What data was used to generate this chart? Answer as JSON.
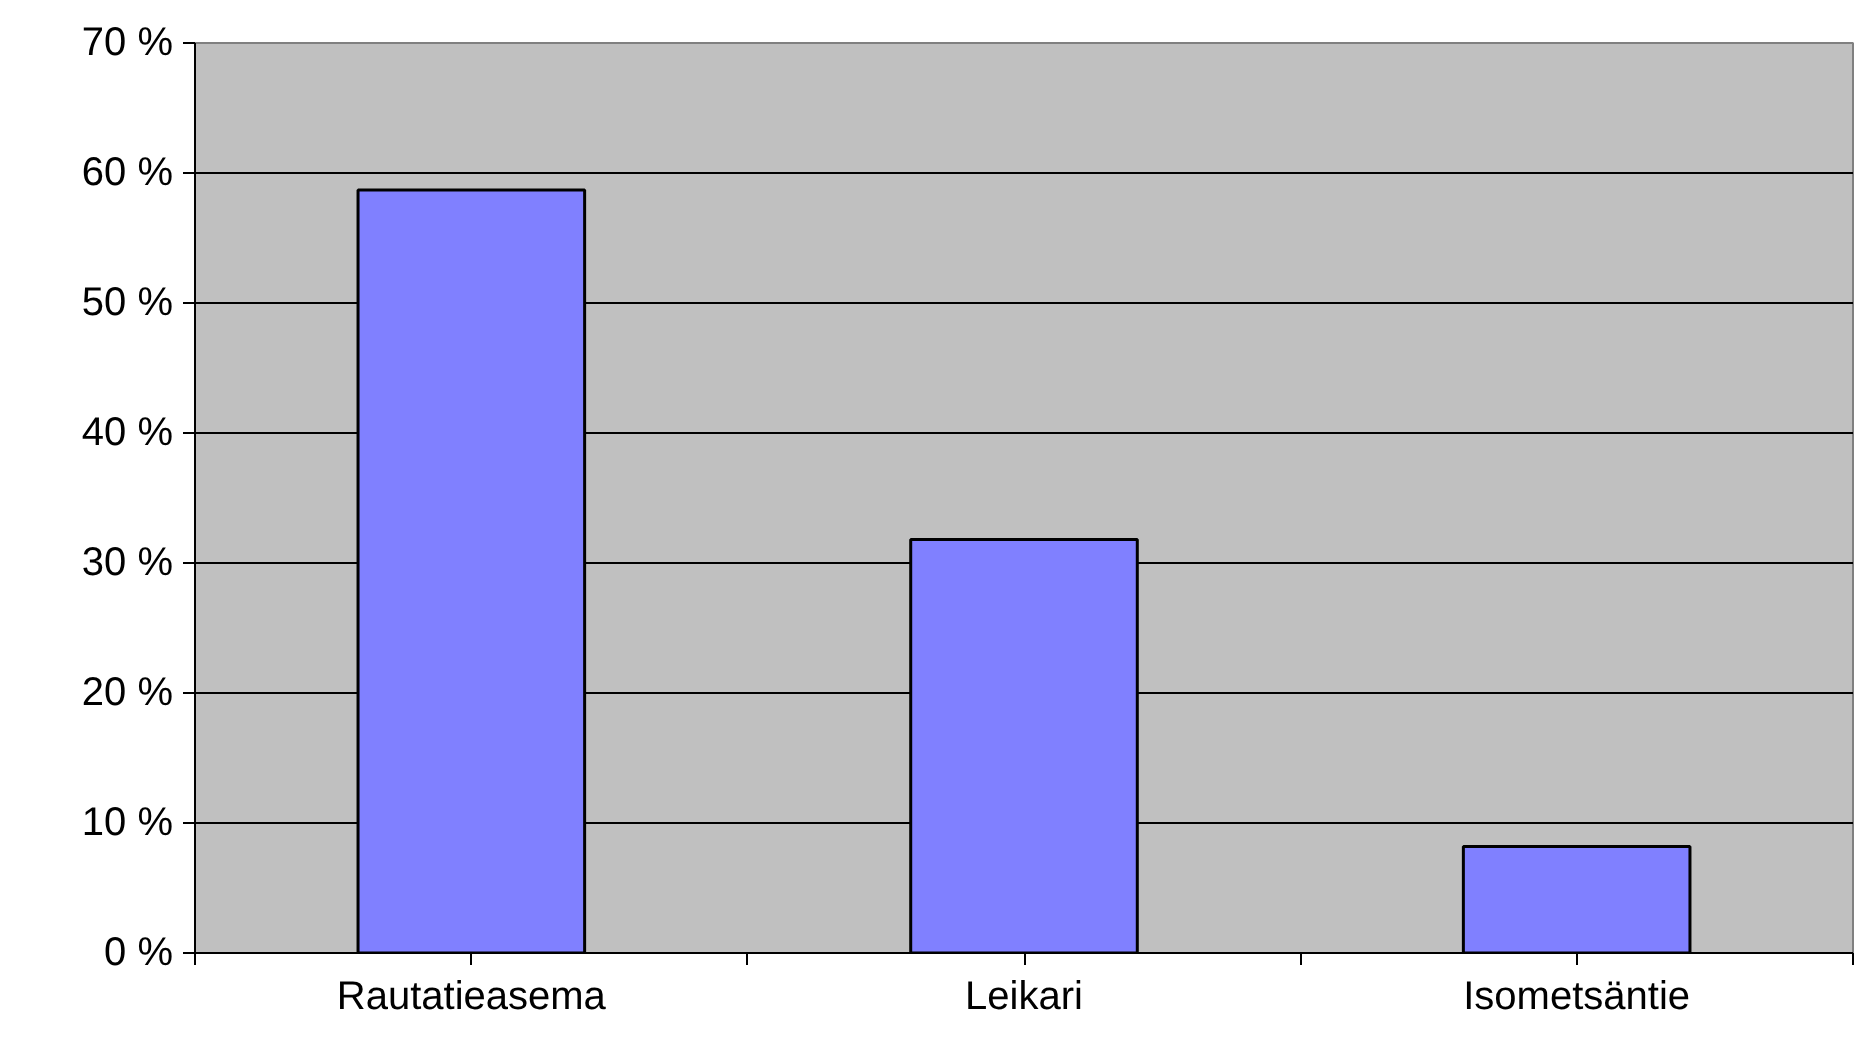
{
  "chart_data": {
    "type": "bar",
    "categories": [
      "Rautatieasema",
      "Leikari",
      "Isometsäntie"
    ],
    "values": [
      58.7,
      31.8,
      8.2
    ],
    "color": "#8080ff",
    "ylim": [
      0,
      70
    ],
    "yticks": [
      {
        "value": 0,
        "label": "0 %"
      },
      {
        "value": 10,
        "label": "10 %"
      },
      {
        "value": 20,
        "label": "20 %"
      },
      {
        "value": 30,
        "label": "30 %"
      },
      {
        "value": 40,
        "label": "40 %"
      },
      {
        "value": 50,
        "label": "50 %"
      },
      {
        "value": 60,
        "label": "60 %"
      },
      {
        "value": 70,
        "label": "70 %"
      }
    ],
    "grid": "y"
  }
}
